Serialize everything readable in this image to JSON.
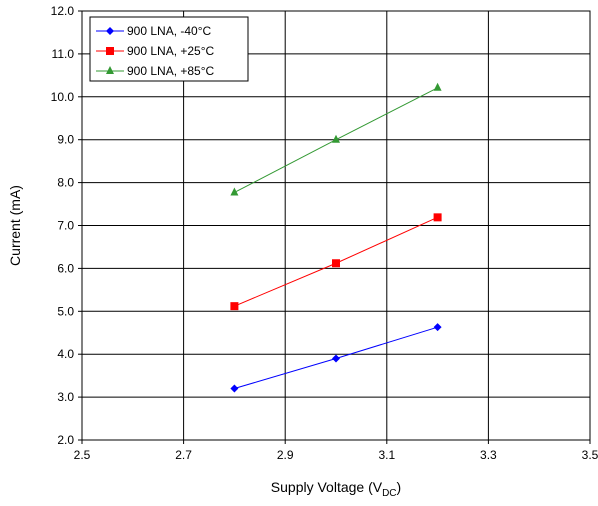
{
  "chart_data": {
    "type": "line",
    "title": "",
    "xlabel": "Supply Voltage (V",
    "xlabel_sub": "DC",
    "xlabel_close": ")",
    "ylabel": "Current (mA)",
    "xlim": [
      2.5,
      3.5
    ],
    "ylim": [
      2.0,
      12.0
    ],
    "xticks": [
      "2.5",
      "2.7",
      "2.9",
      "3.1",
      "3.3",
      "3.5"
    ],
    "yticks": [
      "2.0",
      "3.0",
      "4.0",
      "5.0",
      "6.0",
      "7.0",
      "8.0",
      "9.0",
      "10.0",
      "11.0",
      "12.0"
    ],
    "grid": true,
    "legend_position": "top-left",
    "series": [
      {
        "name": "900 LNA, -40°C",
        "color": "#0000ff",
        "marker": "diamond",
        "x": [
          2.8,
          3.0,
          3.2
        ],
        "y": [
          3.2,
          3.9,
          4.63
        ]
      },
      {
        "name": "900 LNA, +25°C",
        "color": "#ff0000",
        "marker": "square",
        "x": [
          2.8,
          3.0,
          3.2
        ],
        "y": [
          5.12,
          6.12,
          7.19
        ]
      },
      {
        "name": "900 LNA, +85°C",
        "color": "#339933",
        "marker": "triangle",
        "x": [
          2.8,
          3.0,
          3.2
        ],
        "y": [
          7.77,
          9.0,
          10.21
        ]
      }
    ]
  }
}
